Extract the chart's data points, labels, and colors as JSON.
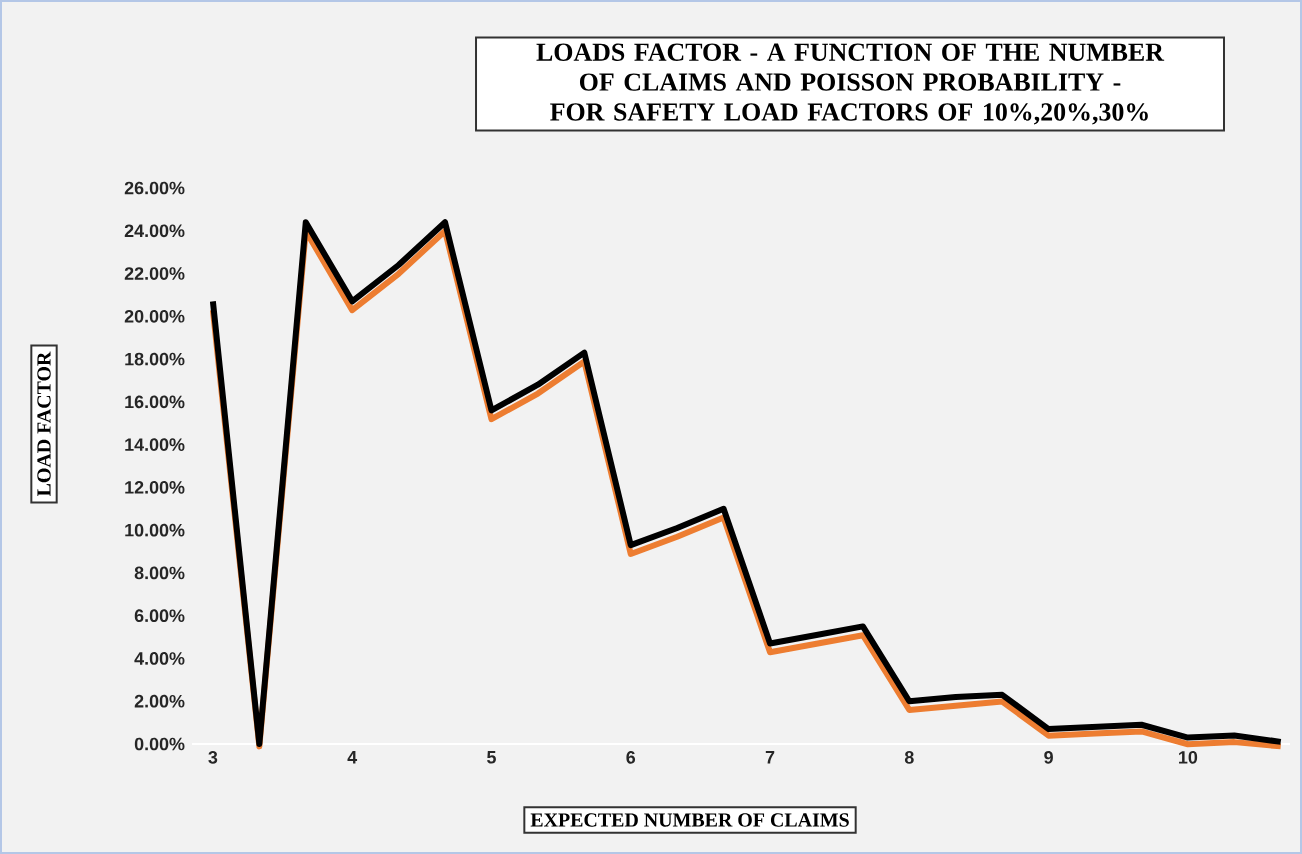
{
  "chart_data": {
    "type": "line",
    "title": "LOADS FACTOR - A FUNCTION OF THE NUMBER OF CLAIMS AND POISSON PROBABILITY - FOR SAFETY LOAD FACTORS OF 10%,20%,30%",
    "xlabel": "EXPECTED NUMBER OF CLAIMS",
    "ylabel": "LOAD FACTOR",
    "categories": [
      "3",
      null,
      null,
      "4",
      null,
      null,
      "5",
      null,
      null,
      "6",
      null,
      null,
      "7",
      null,
      null,
      "8",
      null,
      null,
      "9",
      null,
      null,
      "10",
      null,
      null
    ],
    "ylim": [
      0,
      26
    ],
    "yticks": [
      {
        "value": 0,
        "label": "0.00%"
      },
      {
        "value": 2,
        "label": "2.00%"
      },
      {
        "value": 4,
        "label": "4.00%"
      },
      {
        "value": 6,
        "label": "6.00%"
      },
      {
        "value": 8,
        "label": "8.00%"
      },
      {
        "value": 10,
        "label": "10.00%"
      },
      {
        "value": 12,
        "label": "12.00%"
      },
      {
        "value": 14,
        "label": "14.00%"
      },
      {
        "value": 16,
        "label": "16.00%"
      },
      {
        "value": 18,
        "label": "18.00%"
      },
      {
        "value": 20,
        "label": "20.00%"
      },
      {
        "value": 22,
        "label": "22.00%"
      },
      {
        "value": 24,
        "label": "24.00%"
      },
      {
        "value": 26,
        "label": "26.00%"
      }
    ],
    "marker": "none",
    "series": [
      {
        "color": "#ed7d31",
        "values": [
          20.4,
          0,
          24.1,
          20.4,
          22.1,
          24.1,
          15.3,
          16.5,
          18.0,
          9.0,
          9.8,
          10.7,
          4.4,
          4.8,
          5.2,
          1.7,
          1.9,
          2.1,
          0.5,
          0.6,
          0.7,
          0.1,
          0.2,
          0
        ]
      },
      {
        "color": "#000000",
        "values": [
          20.7,
          0,
          24.4,
          20.7,
          22.4,
          24.4,
          15.6,
          16.8,
          18.3,
          9.3,
          10.1,
          11.0,
          4.7,
          5.1,
          5.5,
          2.0,
          2.2,
          2.3,
          0.7,
          0.8,
          0.9,
          0.3,
          0.4,
          0.1
        ]
      }
    ]
  }
}
